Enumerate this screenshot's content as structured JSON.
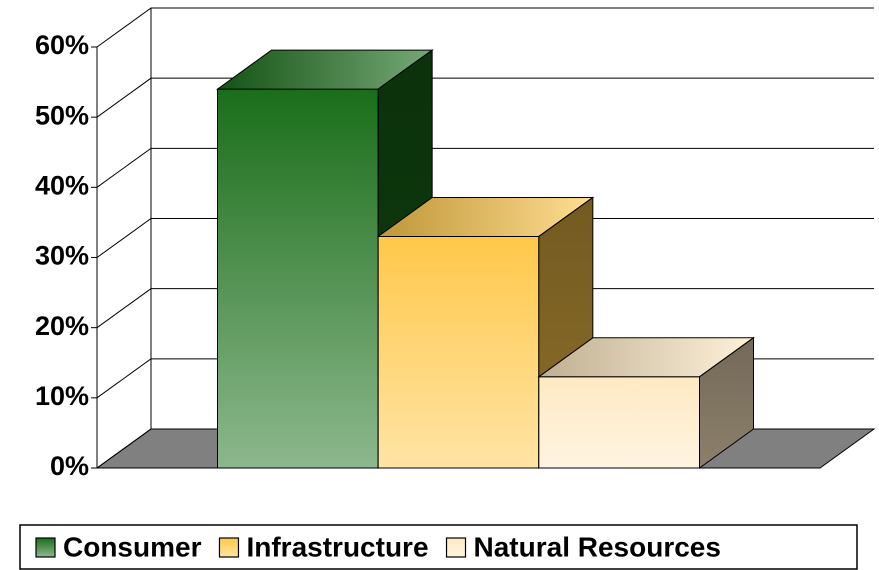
{
  "chart_data": {
    "type": "bar3d",
    "categories": [
      null
    ],
    "series": [
      {
        "name": "Consumer",
        "color": "#1a6e1a",
        "values": [
          54
        ]
      },
      {
        "name": "Infrastructure",
        "color": "#ffc84a",
        "values": [
          33
        ]
      },
      {
        "name": "Natural Resources",
        "color": "#ffe9c2",
        "values": [
          13
        ]
      }
    ],
    "ylim": [
      0,
      60
    ],
    "yticks": [
      {
        "value": 0,
        "label": "0%"
      },
      {
        "value": 10,
        "label": "10%"
      },
      {
        "value": 20,
        "label": "20%"
      },
      {
        "value": 30,
        "label": "30%"
      },
      {
        "value": 40,
        "label": "40%"
      },
      {
        "value": 50,
        "label": "50%"
      },
      {
        "value": 60,
        "label": "60%"
      }
    ],
    "grid": true,
    "legend": "bottom"
  }
}
